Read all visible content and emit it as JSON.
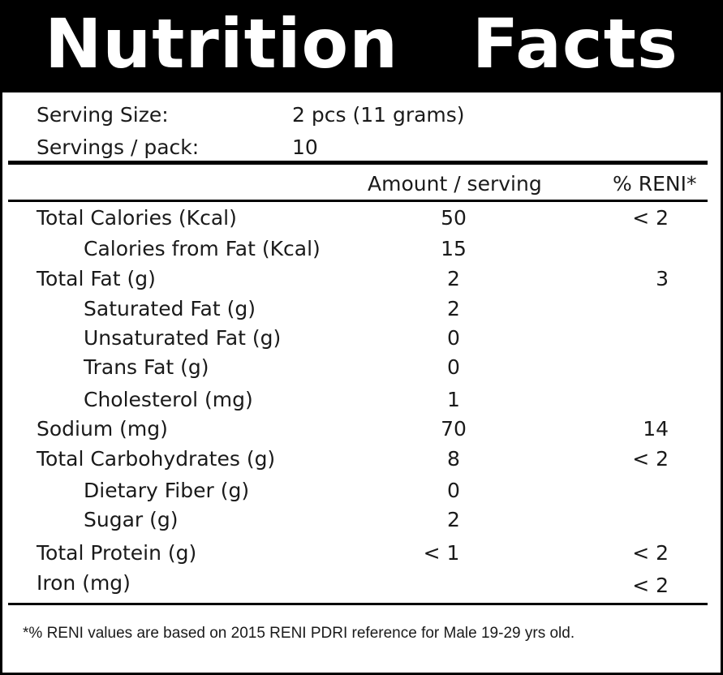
{
  "title": "Nutrition   Facts",
  "serving": {
    "size_label": "Serving Size:",
    "size_value": "2 pcs (11 grams)",
    "servings_label": "Servings / pack:",
    "servings_value": "10"
  },
  "table": {
    "header_amount": "Amount / serving",
    "header_reni": "% RENI*",
    "rows": [
      {
        "label": "Total Calories (Kcal)",
        "amount": "50",
        "reni": "< 2"
      },
      {
        "label": "Calories from Fat (Kcal)",
        "amount": "15",
        "reni": ""
      },
      {
        "label": "Total Fat (g)",
        "amount": "2",
        "reni": "3"
      },
      {
        "label": "Saturated Fat (g)",
        "amount": "2",
        "reni": ""
      },
      {
        "label": "Unsaturated Fat (g)",
        "amount": "0",
        "reni": ""
      },
      {
        "label": "Trans Fat (g)",
        "amount": "0",
        "reni": ""
      },
      {
        "label": "Cholesterol (mg)",
        "amount": "1",
        "reni": ""
      },
      {
        "label": "Sodium (mg)",
        "amount": "70",
        "reni": "14"
      },
      {
        "label": "Total Carbohydrates (g)",
        "amount": "8",
        "reni": "< 2"
      },
      {
        "label": "Dietary Fiber (g)",
        "amount": "0",
        "reni": ""
      },
      {
        "label": "Sugar (g)",
        "amount": "2",
        "reni": ""
      },
      {
        "label": "Total Protein (g)",
        "amount": "< 1",
        "reni": "< 2"
      },
      {
        "label": "Iron (mg)",
        "amount": "",
        "reni": "< 2"
      }
    ]
  },
  "footnote": "*% RENI values are based on 2015 RENI PDRI reference for Male 19-29 yrs old."
}
